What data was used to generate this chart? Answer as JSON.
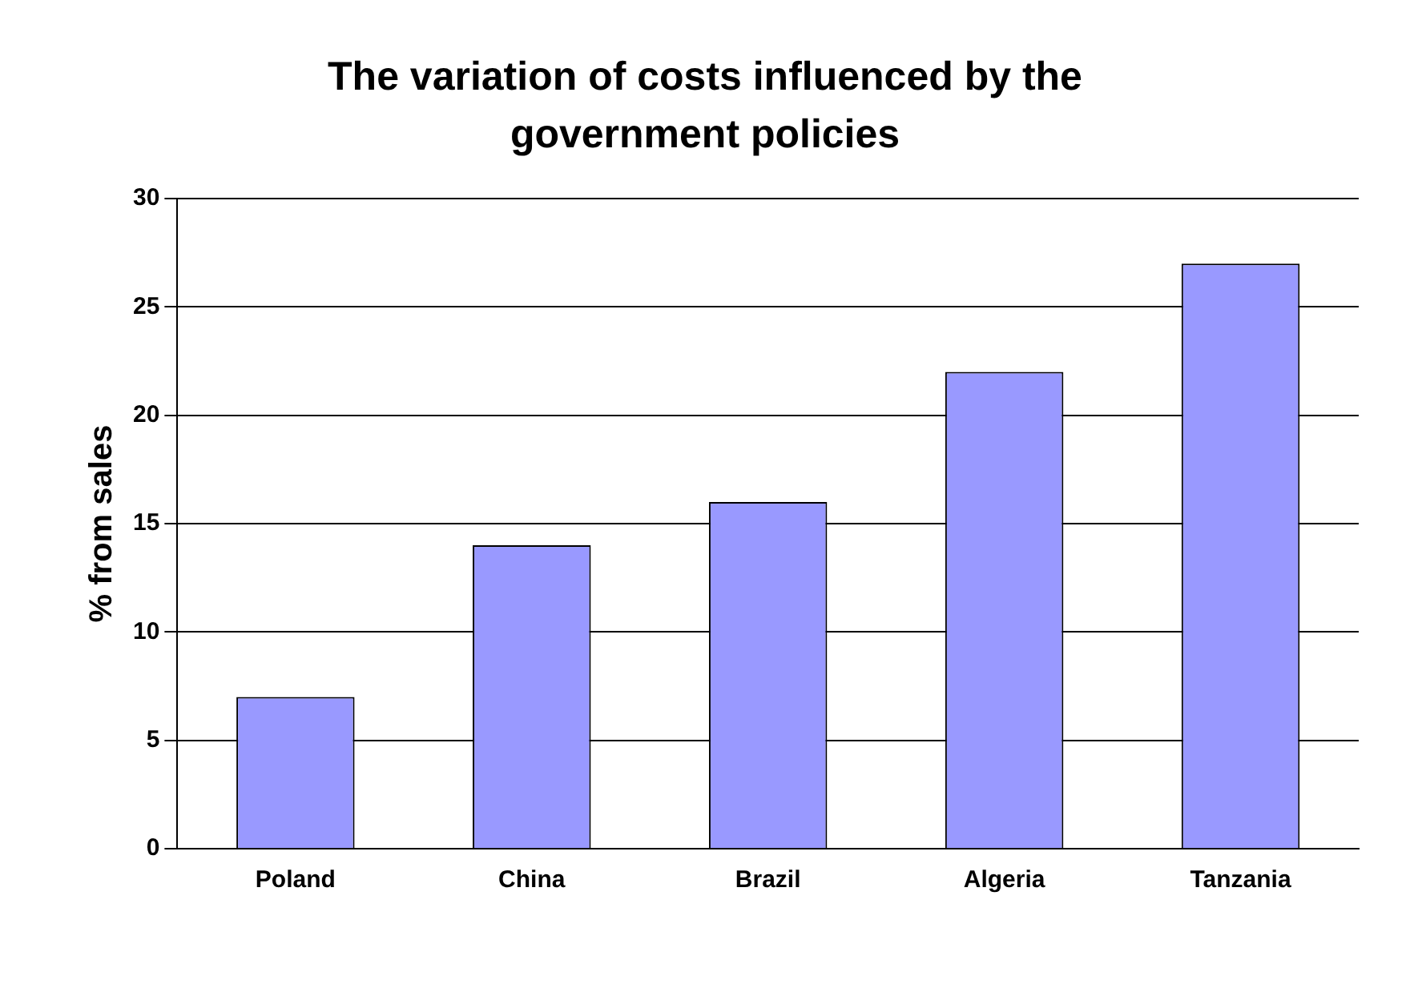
{
  "chart_data": {
    "type": "bar",
    "title": "The variation of costs influenced by the government policies",
    "ylabel": "% from sales",
    "categories": [
      "Poland",
      "China",
      "Brazil",
      "Algeria",
      "Tanzania"
    ],
    "values": [
      7,
      14,
      16,
      22,
      27
    ],
    "color": "#9999ff",
    "ylim": [
      0,
      30
    ],
    "yticks": [
      0,
      5,
      10,
      15,
      20,
      25,
      30
    ],
    "grid": "y"
  }
}
